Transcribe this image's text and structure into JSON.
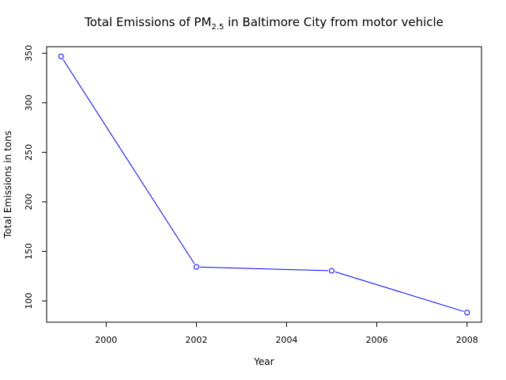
{
  "chart_data": {
    "type": "line",
    "title_parts": {
      "before": "Total Emissions of PM",
      "subscript": "2.5",
      "after": " in Baltimore City from motor vehicle"
    },
    "xlabel": "Year",
    "ylabel": "Total Emissions in tons",
    "x": [
      1999,
      2002,
      2005,
      2008
    ],
    "series": [
      {
        "values": [
          346.82,
          134.31,
          130.43,
          88.28
        ]
      }
    ],
    "x_ticks": [
      "2000",
      "2002",
      "2004",
      "2006",
      "2008"
    ],
    "y_ticks": [
      "100",
      "150",
      "200",
      "250",
      "300",
      "350"
    ],
    "xlim": [
      1998.68,
      2008.32
    ],
    "ylim": [
      78.5,
      356.6
    ],
    "markers": "open-circle",
    "grid": false,
    "colors": {
      "line": "#0000ff",
      "axis": "#000000",
      "background": "#ffffff"
    }
  }
}
